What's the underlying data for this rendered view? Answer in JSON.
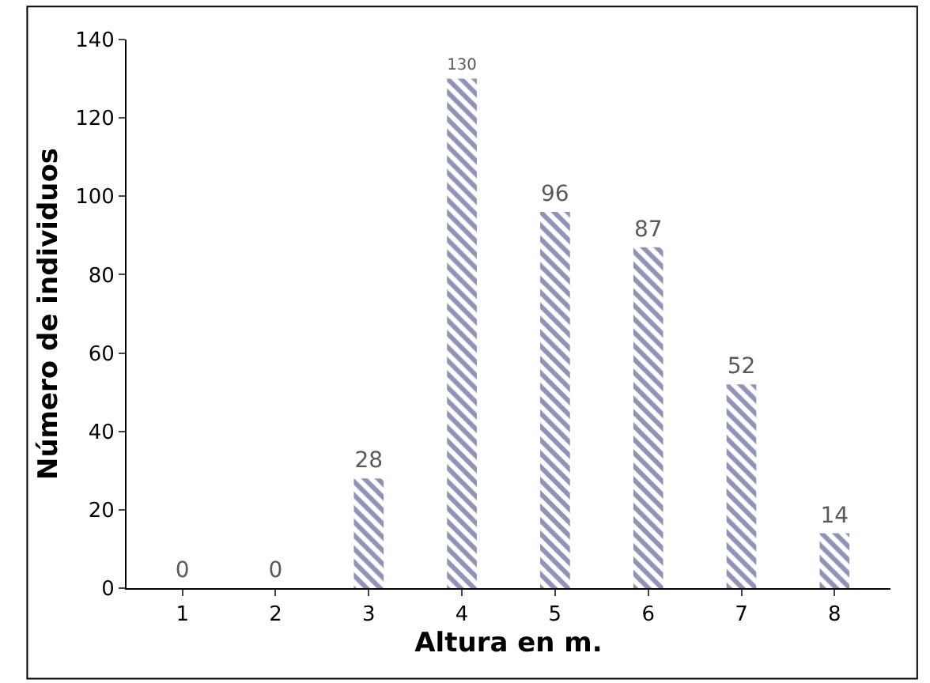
{
  "chart_data": {
    "type": "bar",
    "xlabel": "Altura en m.",
    "ylabel": "Número de individuos",
    "categories": [
      "1",
      "2",
      "3",
      "4",
      "5",
      "6",
      "7",
      "8"
    ],
    "values": [
      0,
      0,
      28,
      130,
      96,
      87,
      52,
      14
    ],
    "color": "#1f2a6e",
    "ylim": [
      0,
      140
    ],
    "yticks": [
      0,
      20,
      40,
      60,
      80,
      100,
      120,
      140
    ],
    "data_labels": true,
    "grid": false,
    "legend": false
  }
}
